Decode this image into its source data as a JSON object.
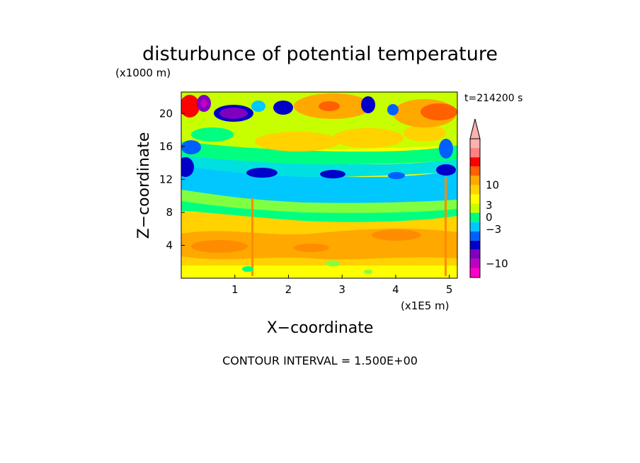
{
  "chart_data": {
    "type": "heatmap",
    "title": "disturbunce of potential temperature",
    "z_units_label": "(x1000 m)",
    "xlabel": "X−coordinate",
    "ylabel": "Z−coordinate",
    "x_units_label": "(x1E5 m)",
    "time_label": "t=214200 s",
    "contour_interval_label": "CONTOUR INTERVAL = 1.500E+00",
    "xlim": [
      0,
      5.15
    ],
    "ylim": [
      0,
      22.6
    ],
    "x_ticks": [
      1,
      2,
      3,
      4,
      5
    ],
    "y_ticks": [
      4,
      8,
      12,
      16,
      20
    ],
    "grid": false,
    "colorbar": {
      "colors": [
        "#ff00c8",
        "#c000c0",
        "#8000c0",
        "#0000c8",
        "#0060ff",
        "#00c8ff",
        "#00ff80",
        "#c8ff00",
        "#ffff00",
        "#ffd200",
        "#ffa800",
        "#ff6000",
        "#ff0000",
        "#ff8080",
        "#ffb0b0"
      ],
      "tick_labels": [
        "−10",
        "−3",
        "0",
        "3",
        "10"
      ],
      "tick_values": [
        -10,
        -3,
        0,
        3,
        10
      ]
    }
  }
}
